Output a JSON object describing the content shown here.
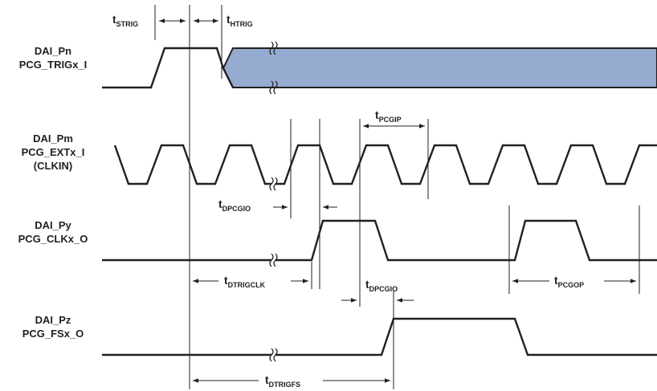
{
  "signals": [
    {
      "line1": "DAI_Pn",
      "line2": "PCG_TRIGx_I",
      "line3": ""
    },
    {
      "line1": "DAI_Pm",
      "line2": "PCG_EXTx_I",
      "line3": "(CLKIN)"
    },
    {
      "line1": "DAI_Py",
      "line2": "PCG_CLKx_O",
      "line3": ""
    },
    {
      "line1": "DAI_Pz",
      "line2": "PCG_FSx_O",
      "line3": ""
    }
  ],
  "timings": {
    "strig": {
      "t": "t",
      "sub": "STRIG"
    },
    "htrig": {
      "t": "t",
      "sub": "HTRIG"
    },
    "pcgip": {
      "t": "t",
      "sub": "PCGIP"
    },
    "dpcgio_1": {
      "t": "t",
      "sub": "DPCGIO"
    },
    "dtrigclk": {
      "t": "t",
      "sub": "DTRIGCLK"
    },
    "dpcgio_2": {
      "t": "t",
      "sub": "DPCGIO"
    },
    "pcgop": {
      "t": "t",
      "sub": "PCGOP"
    },
    "dtrigfs": {
      "t": "t",
      "sub": "DTRIGFS"
    }
  },
  "colors": {
    "line": "#231f20",
    "shade_fill": "#95abcf"
  }
}
